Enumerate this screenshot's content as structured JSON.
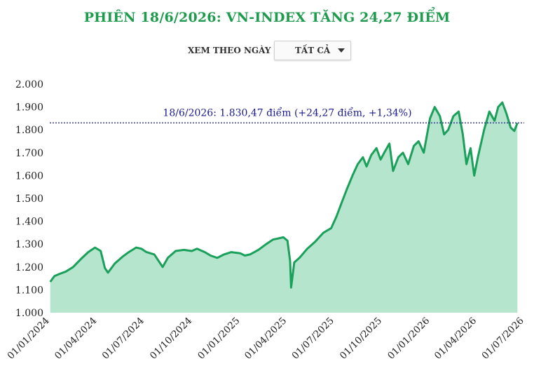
{
  "header": {
    "title": "PHIÊN 18/6/2026: VN-INDEX TĂNG 24,27 ĐIỂM",
    "view_label": "XEM THEO NGÀY",
    "range_select": "TẤT CẢ"
  },
  "colors": {
    "title": "#1e9b4d",
    "line": "#1aa05a",
    "fill": "#b5e5cc",
    "reference_line": "#1a1a8c",
    "annotation_text": "#1a1a8c"
  },
  "chart_data": {
    "type": "area",
    "title": "PHIÊN 18/6/2026: VN-INDEX TĂNG 24,27 ĐIỂM",
    "xlabel": "",
    "ylabel": "",
    "ylim": [
      1000,
      2000
    ],
    "xlim": [
      "2024-01-01",
      "2026-07-01"
    ],
    "grid": false,
    "yticks": [
      1000,
      1100,
      1200,
      1300,
      1400,
      1500,
      1600,
      1700,
      1800,
      1900,
      2000
    ],
    "ytick_labels": [
      "1.000",
      "1.100",
      "1.200",
      "1.300",
      "1.400",
      "1.500",
      "1.600",
      "1.700",
      "1.800",
      "1.900",
      "2.000"
    ],
    "xticks": [
      "2024-01-01",
      "2024-04-01",
      "2024-07-01",
      "2024-10-01",
      "2025-01-01",
      "2025-04-01",
      "2025-07-01",
      "2025-10-01",
      "2026-01-01",
      "2026-04-01",
      "2026-07-01"
    ],
    "xtick_labels": [
      "01/01/2024",
      "01/04/2024",
      "01/07/2024",
      "01/10/2024",
      "01/01/2025",
      "01/04/2025",
      "01/07/2025",
      "01/10/2025",
      "01/01/2026",
      "01/04/2026",
      "01/07/2026"
    ],
    "reference_line": {
      "y": 1830.47,
      "style": "dotted"
    },
    "annotation": "18/6/2026: 1.830,47 điểm (+24,27 điểm, +1,34%)",
    "series": [
      {
        "x": [
          "2024-01-02",
          "2024-01-10",
          "2024-01-20",
          "2024-02-01",
          "2024-02-15",
          "2024-03-01",
          "2024-03-15",
          "2024-03-28",
          "2024-04-08",
          "2024-04-16",
          "2024-04-22",
          "2024-05-05",
          "2024-05-20",
          "2024-06-01",
          "2024-06-15",
          "2024-06-25",
          "2024-07-05",
          "2024-07-20",
          "2024-08-05",
          "2024-08-15",
          "2024-08-30",
          "2024-09-15",
          "2024-09-30",
          "2024-10-10",
          "2024-10-25",
          "2024-11-05",
          "2024-11-18",
          "2024-12-01",
          "2024-12-15",
          "2025-01-01",
          "2025-01-10",
          "2025-01-20",
          "2025-02-05",
          "2025-02-20",
          "2025-03-05",
          "2025-03-15",
          "2025-03-25",
          "2025-04-02",
          "2025-04-07",
          "2025-04-09",
          "2025-04-15",
          "2025-04-25",
          "2025-05-10",
          "2025-05-25",
          "2025-06-10",
          "2025-06-25",
          "2025-07-05",
          "2025-07-15",
          "2025-07-25",
          "2025-08-05",
          "2025-08-15",
          "2025-08-25",
          "2025-09-01",
          "2025-09-10",
          "2025-09-20",
          "2025-09-28",
          "2025-10-05",
          "2025-10-15",
          "2025-10-22",
          "2025-11-01",
          "2025-11-10",
          "2025-11-20",
          "2025-12-01",
          "2025-12-10",
          "2025-12-20",
          "2026-01-01",
          "2026-01-10",
          "2026-01-20",
          "2026-01-28",
          "2026-02-05",
          "2026-02-15",
          "2026-02-25",
          "2026-03-05",
          "2026-03-12",
          "2026-03-20",
          "2026-03-27",
          "2026-04-03",
          "2026-04-15",
          "2026-04-25",
          "2026-05-05",
          "2026-05-12",
          "2026-05-20",
          "2026-05-28",
          "2026-06-05",
          "2026-06-12",
          "2026-06-18"
        ],
        "values": [
          1135,
          1160,
          1170,
          1180,
          1200,
          1235,
          1265,
          1285,
          1270,
          1195,
          1175,
          1215,
          1245,
          1265,
          1285,
          1280,
          1265,
          1255,
          1200,
          1240,
          1270,
          1275,
          1270,
          1280,
          1265,
          1250,
          1240,
          1255,
          1265,
          1260,
          1250,
          1255,
          1275,
          1300,
          1320,
          1325,
          1330,
          1315,
          1225,
          1110,
          1220,
          1240,
          1280,
          1310,
          1350,
          1370,
          1420,
          1480,
          1540,
          1600,
          1650,
          1680,
          1640,
          1690,
          1720,
          1670,
          1700,
          1740,
          1620,
          1680,
          1700,
          1650,
          1730,
          1750,
          1700,
          1850,
          1900,
          1860,
          1780,
          1800,
          1860,
          1880,
          1780,
          1650,
          1720,
          1600,
          1680,
          1800,
          1880,
          1840,
          1900,
          1920,
          1870,
          1810,
          1795,
          1830
        ]
      }
    ]
  }
}
